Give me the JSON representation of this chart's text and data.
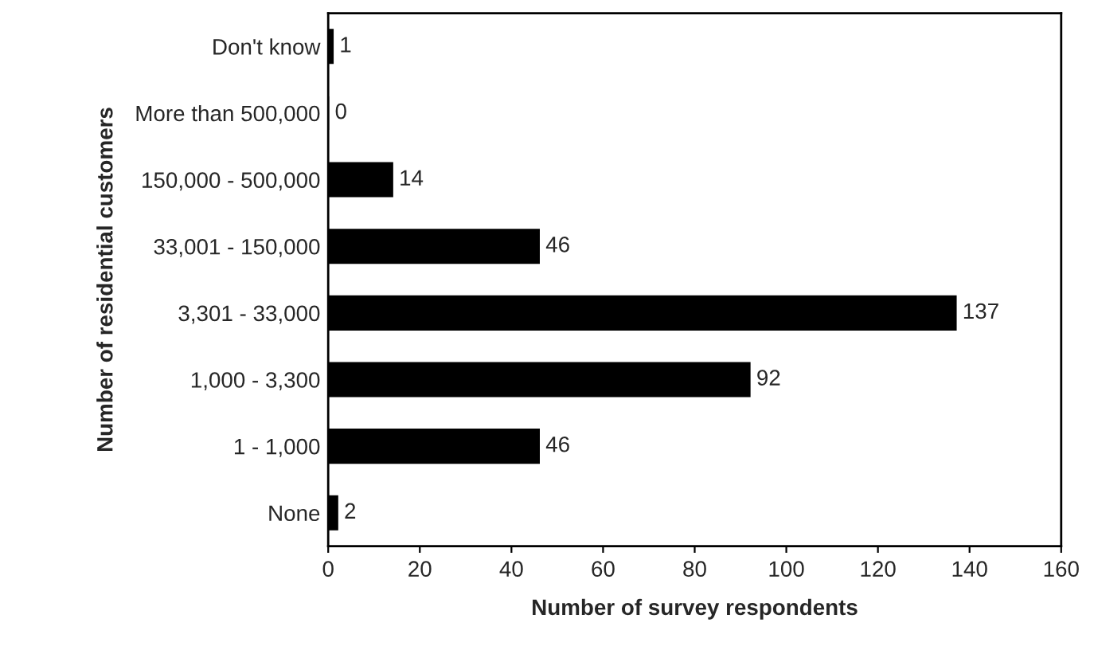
{
  "chart_data": {
    "type": "bar",
    "orientation": "horizontal",
    "xlabel": "Number of survey respondents",
    "ylabel": "Number of residential customers",
    "categories": [
      "Don't know",
      "More than 500,000",
      "150,000 - 500,000",
      "33,001 - 150,000",
      "3,301 - 33,000",
      "1,000 - 3,300",
      "1 - 1,000",
      "None"
    ],
    "values": [
      1,
      0,
      14,
      46,
      137,
      92,
      46,
      2
    ],
    "color": "#000000",
    "xlim": [
      0,
      160
    ],
    "xticks": [
      0,
      20,
      40,
      60,
      80,
      100,
      120,
      140,
      160
    ],
    "data_labels": true,
    "grid": false,
    "legend": false
  }
}
